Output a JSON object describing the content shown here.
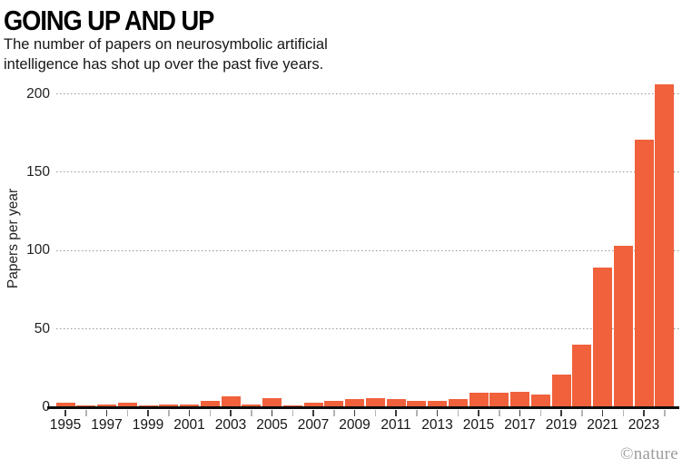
{
  "header": {
    "title": "GOING UP AND UP",
    "subtitle": "The number of papers on neurosymbolic artificial intelligence has shot up over the past five years."
  },
  "chart_data": {
    "type": "bar",
    "title": "GOING UP AND UP",
    "subtitle": "The number of papers on neurosymbolic artificial intelligence has shot up over the past five years.",
    "x": [
      1995,
      1996,
      1997,
      1998,
      1999,
      2000,
      2001,
      2002,
      2003,
      2004,
      2005,
      2006,
      2007,
      2008,
      2009,
      2010,
      2011,
      2012,
      2013,
      2014,
      2015,
      2016,
      2017,
      2018,
      2019,
      2020,
      2021,
      2022,
      2023,
      2024
    ],
    "values": [
      3,
      1,
      2,
      3,
      1,
      2,
      2,
      4,
      7,
      2,
      6,
      1,
      3,
      4,
      5,
      6,
      5,
      4,
      4,
      5,
      9,
      9,
      10,
      8,
      21,
      40,
      89,
      103,
      171,
      206
    ],
    "xlabel": "",
    "ylabel": "Papers per year",
    "yticks": [
      0,
      50,
      100,
      150,
      200
    ],
    "xtick_labels": [
      1995,
      1997,
      1999,
      2001,
      2003,
      2005,
      2007,
      2009,
      2011,
      2013,
      2015,
      2017,
      2019,
      2021,
      2023
    ],
    "ylim": [
      0,
      208
    ],
    "bar_color": "#F0613C",
    "grid": "horizontal-dotted",
    "legend_position": "none"
  },
  "footer": {
    "credit": "©nature"
  }
}
